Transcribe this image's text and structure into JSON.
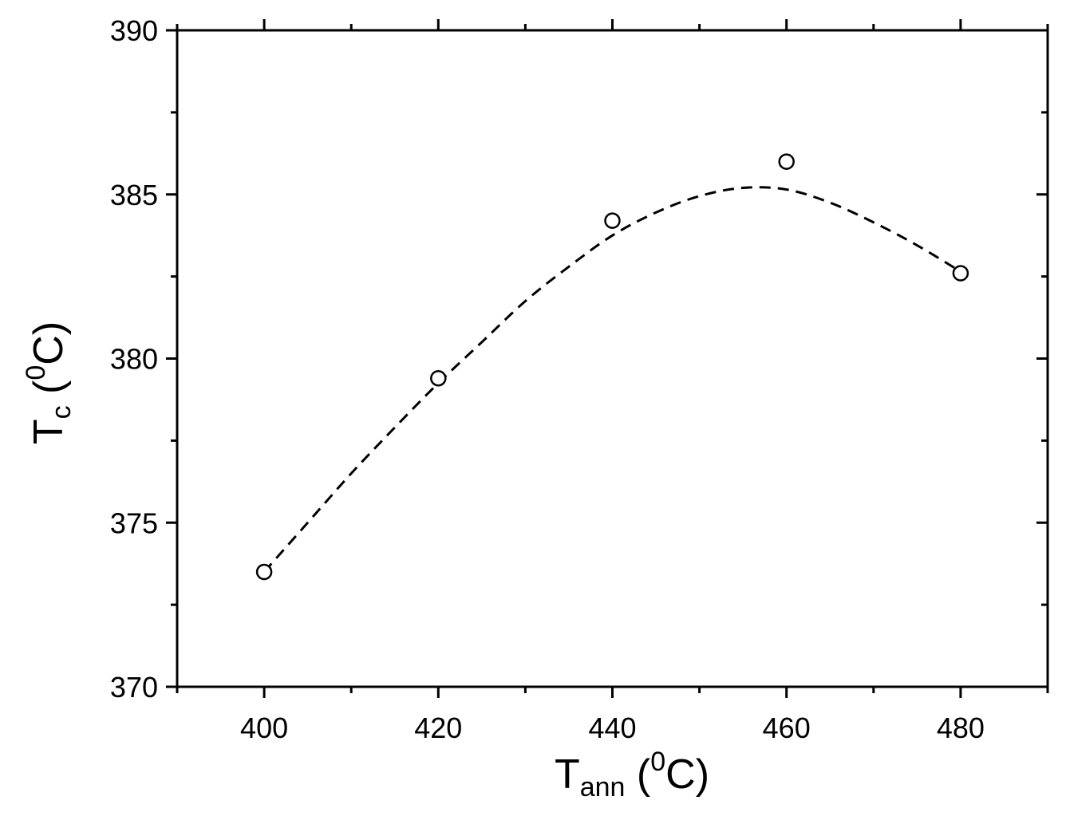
{
  "chart_data": {
    "type": "scatter",
    "title": "",
    "xlabel": {
      "main": "T",
      "sub": "ann",
      "open": " (",
      "sup": "0",
      "unit": "C)"
    },
    "ylabel": {
      "main": "T",
      "sub": "c",
      "open": " (",
      "sup": "0",
      "unit": "C)"
    },
    "xlim": [
      390,
      490
    ],
    "ylim": [
      370,
      390
    ],
    "x_major_ticks": [
      400,
      420,
      440,
      460,
      480
    ],
    "x_minor_ticks": [
      390,
      410,
      430,
      450,
      470,
      490
    ],
    "y_major_ticks": [
      370,
      375,
      380,
      385,
      390
    ],
    "y_minor_ticks": [
      372.5,
      377.5,
      382.5,
      387.5
    ],
    "grid": false,
    "legend": "none",
    "series": [
      {
        "marker": "open-circle",
        "x": [
          400,
          420,
          440,
          460,
          480
        ],
        "y": [
          373.5,
          379.4,
          384.2,
          386.0,
          382.6
        ]
      }
    ],
    "fit": {
      "style": "dashed",
      "x": [
        400,
        405,
        410,
        415,
        420,
        425,
        430,
        435,
        440,
        445,
        450,
        455,
        460,
        465,
        470,
        475,
        480
      ],
      "y": [
        373.5,
        375.0,
        376.5,
        377.9,
        379.25,
        380.5,
        381.75,
        382.8,
        383.75,
        384.45,
        384.95,
        385.2,
        385.15,
        384.75,
        384.15,
        383.45,
        382.65
      ]
    }
  }
}
